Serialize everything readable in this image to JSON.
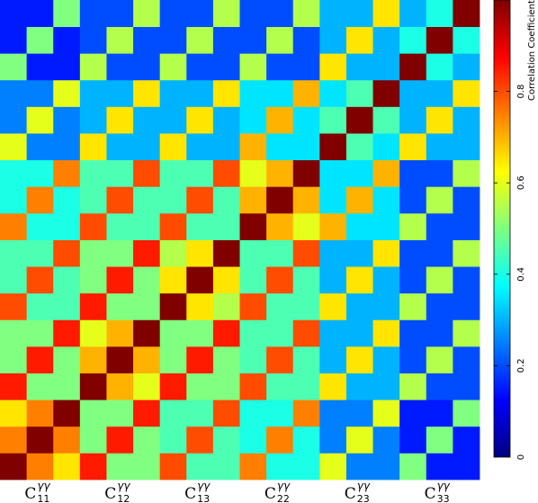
{
  "chart_data": {
    "type": "heatmap",
    "x_labels": [
      {
        "base": "C",
        "sup": "γγ",
        "sub": "11"
      },
      {
        "base": "C",
        "sup": "γγ",
        "sub": "12"
      },
      {
        "base": "C",
        "sup": "γγ",
        "sub": "13"
      },
      {
        "base": "C",
        "sup": "γγ",
        "sub": "22"
      },
      {
        "base": "C",
        "sup": "γγ",
        "sub": "23"
      },
      {
        "base": "C",
        "sup": "γγ",
        "sub": "33"
      }
    ],
    "colorbar_label": "Correlation Coefficient",
    "zlim": [
      0,
      1
    ],
    "zticks": [
      0,
      0.2,
      0.4,
      0.6,
      0.8
    ],
    "colormap": "jet",
    "z": [
      [
        1,
        0.75,
        0.65,
        0.85,
        0.5,
        0.5,
        0.8,
        0.45,
        0.45,
        0.75,
        0.4,
        0.4,
        0.6,
        0.25,
        0.25,
        0.5,
        0.15,
        0.15
      ],
      [
        0.75,
        1,
        0.75,
        0.5,
        0.85,
        0.5,
        0.45,
        0.8,
        0.45,
        0.4,
        0.75,
        0.4,
        0.25,
        0.6,
        0.25,
        0.15,
        0.5,
        0.15
      ],
      [
        0.65,
        0.75,
        1,
        0.5,
        0.5,
        0.85,
        0.45,
        0.45,
        0.8,
        0.4,
        0.4,
        0.75,
        0.25,
        0.25,
        0.6,
        0.15,
        0.15,
        0.5
      ],
      [
        0.85,
        0.5,
        0.5,
        1,
        0.7,
        0.6,
        0.85,
        0.5,
        0.5,
        0.8,
        0.45,
        0.45,
        0.65,
        0.3,
        0.3,
        0.55,
        0.2,
        0.2
      ],
      [
        0.5,
        0.85,
        0.5,
        0.7,
        1,
        0.7,
        0.5,
        0.85,
        0.5,
        0.45,
        0.8,
        0.45,
        0.3,
        0.65,
        0.3,
        0.2,
        0.55,
        0.2
      ],
      [
        0.5,
        0.5,
        0.85,
        0.6,
        0.7,
        1,
        0.5,
        0.5,
        0.85,
        0.45,
        0.45,
        0.8,
        0.3,
        0.3,
        0.65,
        0.2,
        0.2,
        0.55
      ],
      [
        0.8,
        0.45,
        0.45,
        0.85,
        0.5,
        0.5,
        1,
        0.65,
        0.55,
        0.8,
        0.45,
        0.45,
        0.65,
        0.3,
        0.3,
        0.55,
        0.2,
        0.2
      ],
      [
        0.45,
        0.8,
        0.45,
        0.5,
        0.85,
        0.5,
        0.65,
        1,
        0.65,
        0.45,
        0.8,
        0.45,
        0.3,
        0.65,
        0.3,
        0.2,
        0.55,
        0.2
      ],
      [
        0.45,
        0.45,
        0.8,
        0.5,
        0.5,
        0.85,
        0.55,
        0.65,
        1,
        0.45,
        0.45,
        0.8,
        0.3,
        0.3,
        0.65,
        0.2,
        0.2,
        0.55
      ],
      [
        0.75,
        0.4,
        0.4,
        0.8,
        0.45,
        0.45,
        0.8,
        0.45,
        0.45,
        1,
        0.7,
        0.6,
        0.7,
        0.35,
        0.35,
        0.55,
        0.2,
        0.2
      ],
      [
        0.4,
        0.75,
        0.4,
        0.45,
        0.8,
        0.45,
        0.45,
        0.8,
        0.45,
        0.7,
        1,
        0.7,
        0.35,
        0.7,
        0.35,
        0.2,
        0.55,
        0.2
      ],
      [
        0.4,
        0.4,
        0.75,
        0.45,
        0.45,
        0.8,
        0.45,
        0.45,
        0.8,
        0.6,
        0.7,
        1,
        0.35,
        0.35,
        0.7,
        0.2,
        0.2,
        0.55
      ],
      [
        0.6,
        0.25,
        0.25,
        0.65,
        0.3,
        0.3,
        0.65,
        0.3,
        0.3,
        0.7,
        0.35,
        0.35,
        1,
        0.45,
        0.35,
        0.65,
        0.3,
        0.3
      ],
      [
        0.25,
        0.6,
        0.25,
        0.3,
        0.65,
        0.3,
        0.3,
        0.65,
        0.3,
        0.35,
        0.7,
        0.35,
        0.45,
        1,
        0.45,
        0.3,
        0.65,
        0.3
      ],
      [
        0.25,
        0.25,
        0.6,
        0.3,
        0.3,
        0.65,
        0.3,
        0.3,
        0.65,
        0.35,
        0.35,
        0.7,
        0.35,
        0.45,
        1,
        0.3,
        0.3,
        0.65
      ],
      [
        0.5,
        0.15,
        0.15,
        0.55,
        0.2,
        0.2,
        0.55,
        0.2,
        0.2,
        0.55,
        0.2,
        0.2,
        0.65,
        0.3,
        0.3,
        1,
        0.4,
        0.3
      ],
      [
        0.15,
        0.5,
        0.15,
        0.2,
        0.55,
        0.2,
        0.2,
        0.55,
        0.2,
        0.2,
        0.55,
        0.2,
        0.3,
        0.65,
        0.3,
        0.4,
        1,
        0.4
      ],
      [
        0.15,
        0.15,
        0.5,
        0.2,
        0.2,
        0.55,
        0.2,
        0.2,
        0.55,
        0.2,
        0.2,
        0.55,
        0.3,
        0.3,
        0.65,
        0.3,
        0.4,
        1
      ]
    ]
  }
}
